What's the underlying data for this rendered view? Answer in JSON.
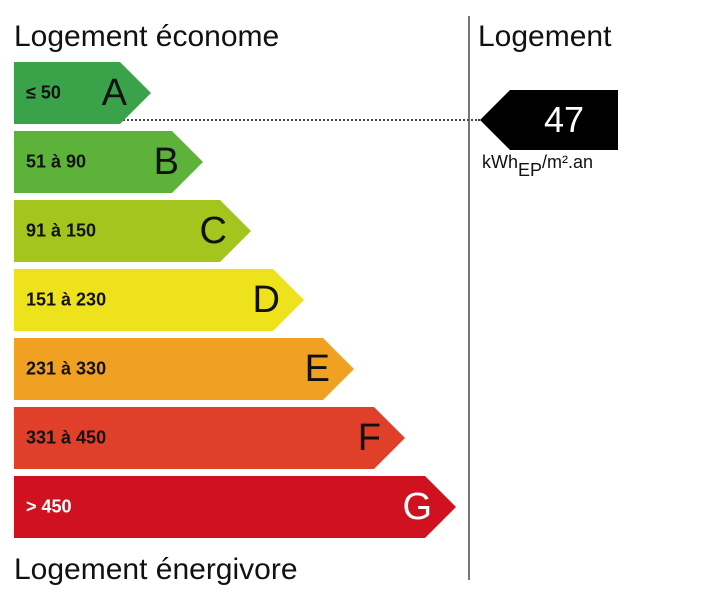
{
  "labels": {
    "top": "Logement économe",
    "bottom": "Logement énergivore",
    "right_title": "Logement"
  },
  "bands": [
    {
      "letter": "A",
      "range": "≤ 50",
      "color": "#3aa34a",
      "text_color": "#111111"
    },
    {
      "letter": "B",
      "range": "51 à 90",
      "color": "#5db33a",
      "text_color": "#111111"
    },
    {
      "letter": "C",
      "range": "91 à 150",
      "color": "#a3c51d",
      "text_color": "#111111"
    },
    {
      "letter": "D",
      "range": "151 à 230",
      "color": "#ede21b",
      "text_color": "#111111"
    },
    {
      "letter": "E",
      "range": "231 à 330",
      "color": "#f0a122",
      "text_color": "#111111"
    },
    {
      "letter": "F",
      "range": "331 à 450",
      "color": "#e0402a",
      "text_color": "#111111"
    },
    {
      "letter": "G",
      "range": "> 450",
      "color": "#d0111f",
      "text_color": "#ffffff"
    }
  ],
  "indicator": {
    "value": "47",
    "class": "A",
    "unit_prefix": "kWh",
    "unit_sub": "EP",
    "unit_suffix": "/m².an"
  }
}
